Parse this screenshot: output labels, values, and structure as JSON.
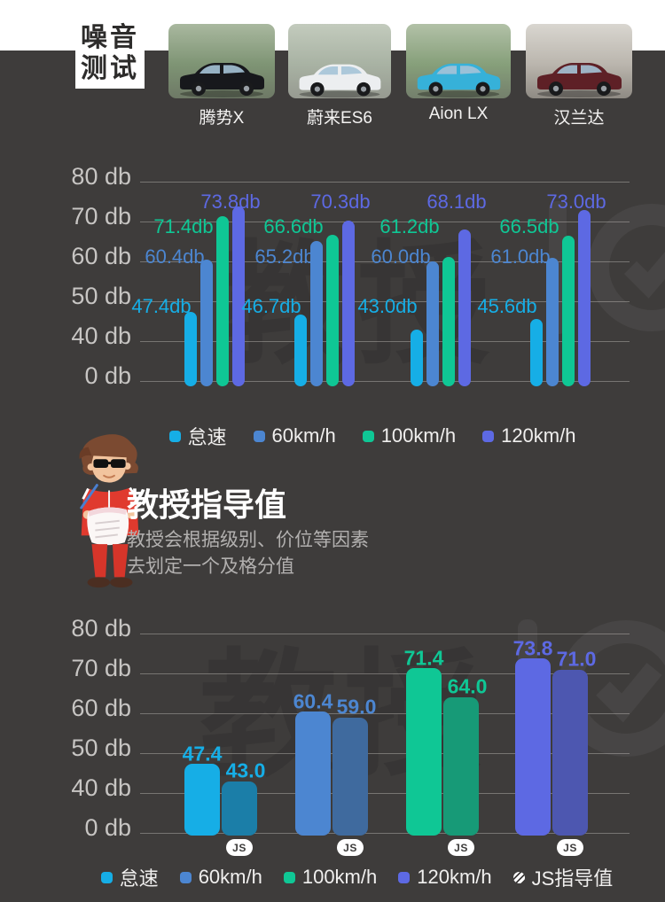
{
  "page": {
    "background": "#3e3c3b",
    "top_strip_color": "#ffffff"
  },
  "header": {
    "badge_line1": "噪音",
    "badge_line2": "测试",
    "cars": [
      {
        "name": "腾势X",
        "body_color": "#17181c",
        "photo_bg": [
          "#a9b89f",
          "#7e9474",
          "#6e7966"
        ]
      },
      {
        "name": "蔚来ES6",
        "body_color": "#eceef0",
        "photo_bg": [
          "#c3cbbd",
          "#a8b2a3",
          "#979a91"
        ]
      },
      {
        "name": "Aion LX",
        "body_color": "#36b1d9",
        "photo_bg": [
          "#b2c1a7",
          "#869f7a",
          "#747f6c"
        ]
      },
      {
        "name": "汉兰达",
        "body_color": "#5e2026",
        "photo_bg": [
          "#d9d6d0",
          "#bab5ad",
          "#8e8a83"
        ]
      }
    ]
  },
  "series": [
    {
      "name": "怠速",
      "color": "#16aee6",
      "hatch_color": "#1b7ea8"
    },
    {
      "name": "60km/h",
      "color": "#4c86d1",
      "hatch_color": "#3f6a9e"
    },
    {
      "name": "100km/h",
      "color": "#0fc795",
      "hatch_color": "#179a77"
    },
    {
      "name": "120km/h",
      "color": "#5d69e3",
      "hatch_color": "#4d57b0"
    }
  ],
  "chart_data": [
    {
      "type": "bar",
      "title": "噪音测试",
      "unit": "db",
      "yticks": [
        {
          "label": "80 db",
          "value": 80
        },
        {
          "label": "70 db",
          "value": 70
        },
        {
          "label": "60 db",
          "value": 60
        },
        {
          "label": "50 db",
          "value": 50
        },
        {
          "label": "40 db",
          "value": 40
        },
        {
          "label": "0 db",
          "value": 0
        }
      ],
      "ylim": [
        0,
        80
      ],
      "grid": true,
      "legend_position": "bottom",
      "categories": [
        "腾势X",
        "蔚来ES6",
        "Aion LX",
        "汉兰达"
      ],
      "series": [
        {
          "name": "怠速",
          "values": [
            47.4,
            46.7,
            43.0,
            45.6
          ]
        },
        {
          "name": "60km/h",
          "values": [
            60.4,
            65.2,
            60.0,
            61.0
          ]
        },
        {
          "name": "100km/h",
          "values": [
            71.4,
            66.6,
            61.2,
            66.5
          ]
        },
        {
          "name": "120km/h",
          "values": [
            73.8,
            70.3,
            68.1,
            73.0
          ]
        }
      ],
      "value_label_suffix": "db"
    },
    {
      "type": "bar",
      "title": "教授指导值",
      "unit": "db",
      "yticks": [
        {
          "label": "80 db",
          "value": 80
        },
        {
          "label": "70 db",
          "value": 70
        },
        {
          "label": "60 db",
          "value": 60
        },
        {
          "label": "50 db",
          "value": 50
        },
        {
          "label": "40 db",
          "value": 40
        },
        {
          "label": "0 db",
          "value": 0
        }
      ],
      "ylim": [
        0,
        80
      ],
      "grid": true,
      "legend_position": "bottom",
      "groups": [
        {
          "speed": "怠速",
          "value": 47.4,
          "js_guide": 43.0
        },
        {
          "speed": "60km/h",
          "value": 60.4,
          "js_guide": 59.0
        },
        {
          "speed": "100km/h",
          "value": 71.4,
          "js_guide": 64.0
        },
        {
          "speed": "120km/h",
          "value": 73.8,
          "js_guide": 71.0
        }
      ],
      "js_badge": "JS",
      "js_legend_label": "JS指导值"
    }
  ],
  "legend1": [
    "怠速",
    "60km/h",
    "100km/h",
    "120km/h"
  ],
  "legend2": [
    "怠速",
    "60km/h",
    "100km/h",
    "120km/h",
    "JS指导值"
  ],
  "guide": {
    "title": "教授指导值",
    "desc_line1": "教授会根据级别、价位等因素",
    "desc_line2": "去划定一个及格分值"
  },
  "watermark": {
    "text": "教授"
  }
}
